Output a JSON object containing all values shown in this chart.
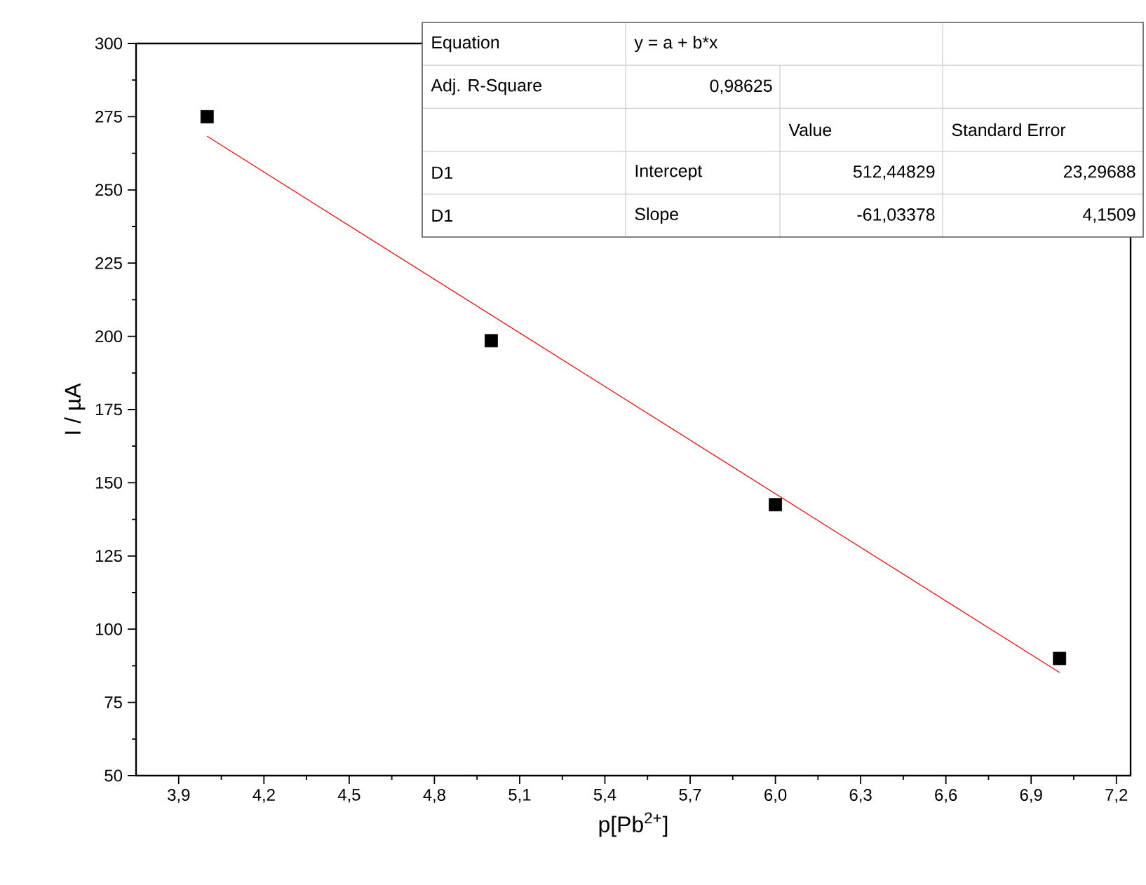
{
  "chart_data": {
    "type": "scatter",
    "xlabel": "p[Pb$^{2+}$]",
    "ylabel": "I / µA",
    "xlim": [
      3.75,
      7.25
    ],
    "ylim": [
      50,
      300
    ],
    "xticks": [
      {
        "value": 3.9,
        "label": "3,9"
      },
      {
        "value": 4.2,
        "label": "4,2"
      },
      {
        "value": 4.5,
        "label": "4,5"
      },
      {
        "value": 4.8,
        "label": "4,8"
      },
      {
        "value": 5.1,
        "label": "5,1"
      },
      {
        "value": 5.4,
        "label": "5,4"
      },
      {
        "value": 5.7,
        "label": "5,7"
      },
      {
        "value": 6.0,
        "label": "6,0"
      },
      {
        "value": 6.3,
        "label": "6,3"
      },
      {
        "value": 6.6,
        "label": "6,6"
      },
      {
        "value": 6.9,
        "label": "6,9"
      },
      {
        "value": 7.2,
        "label": "7,2"
      }
    ],
    "yticks": [
      50,
      75,
      100,
      125,
      150,
      175,
      200,
      225,
      250,
      275,
      300
    ],
    "grid": false,
    "series": [
      {
        "x": [
          4,
          5,
          6,
          7
        ],
        "values": [
          275,
          198.5,
          142.5,
          90
        ],
        "color": "#000000",
        "marker": "square"
      },
      {
        "type": "line",
        "x": [
          4,
          7
        ],
        "values": [
          268.3,
          85.2
        ],
        "color": "#ff0000",
        "marker": "none",
        "line_style": "solid"
      }
    ],
    "annotations": [
      "Equation",
      "y = a + b*x",
      "Adj. R-Square",
      "0,98625",
      "Value",
      "Standard Error",
      "D1",
      "Intercept",
      "512,44829",
      "23,29688",
      "D1",
      "Slope",
      "-61,03378",
      "4,1509"
    ]
  }
}
